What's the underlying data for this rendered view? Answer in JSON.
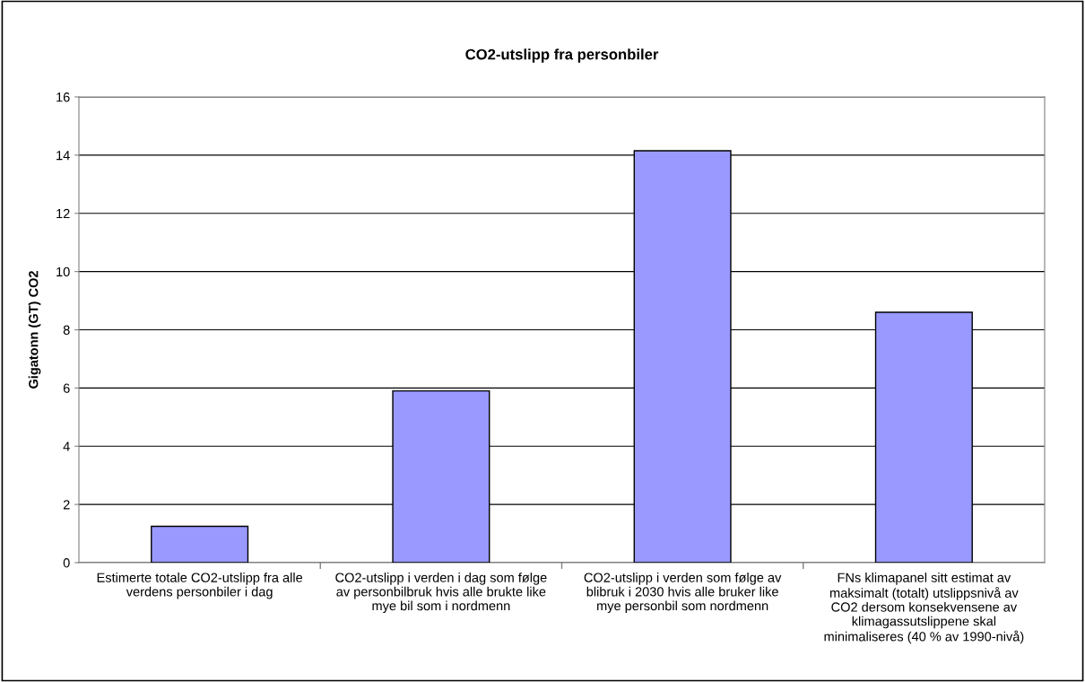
{
  "chart_data": {
    "type": "bar",
    "title": "CO2-utslipp fra personbiler",
    "ylabel": "Gigatonn (GT) CO2",
    "categories": [
      "Estimerte totale CO2-utslipp fra alle\nverdens personbiler i dag",
      "CO2-utslipp i verden i dag som følge\nav personbilbruk hvis alle brukte like\nmye bil som i nordmenn",
      "CO2-utslipp i verden som følge av\nblibruk i 2030 hvis alle bruker like\nmye personbil som nordmenn",
      "FNs klimapanel sitt estimat av\nmaksimalt (totalt) utslippsnivå av\nCO2 dersom konsekvensene av\nklimagassutslippene skal\nminimaliseres (40 % av 1990-nivå)"
    ],
    "values": [
      1.25,
      5.9,
      14.15,
      8.6
    ],
    "color": "#9999ff",
    "ylim": [
      0,
      16
    ],
    "yticks": [
      0,
      2,
      4,
      6,
      8,
      10,
      12,
      14,
      16
    ],
    "grid": "y",
    "legend": false
  }
}
